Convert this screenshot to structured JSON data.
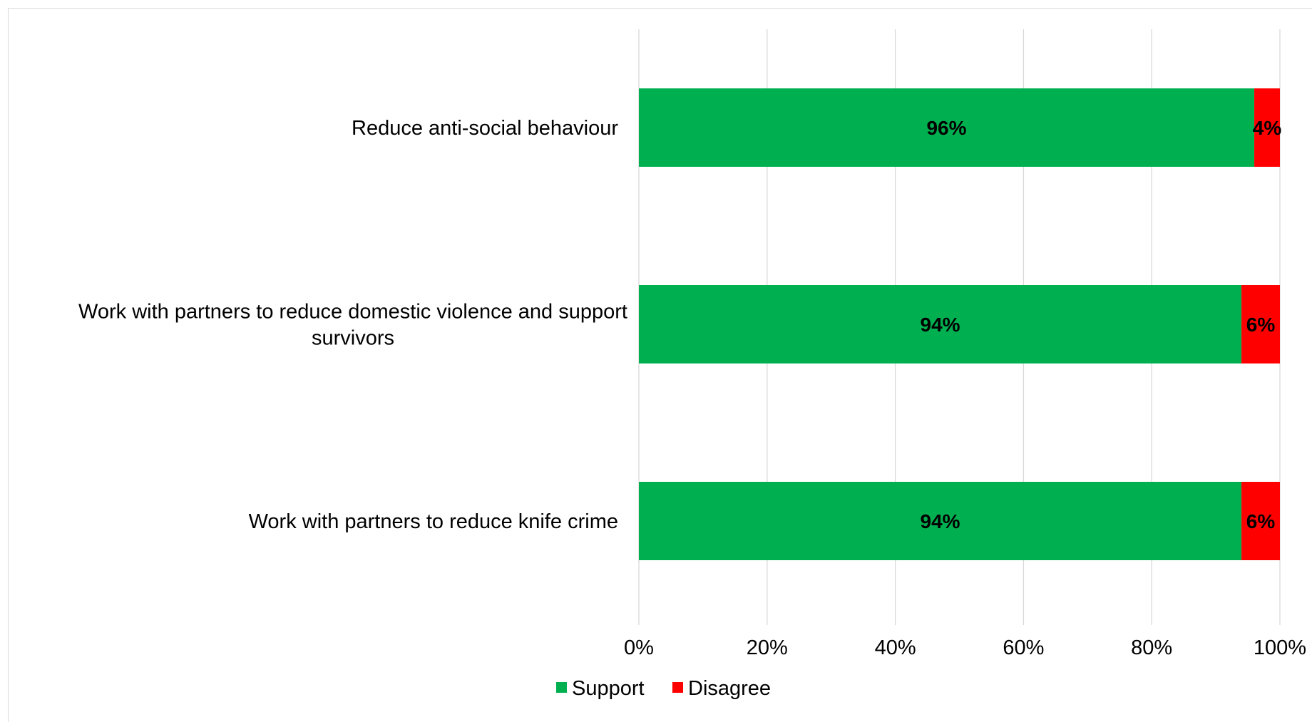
{
  "chart_data": {
    "type": "bar",
    "orientation": "horizontal",
    "stacked": true,
    "percent": true,
    "categories": [
      "Reduce anti-social behaviour",
      "Work with partners to reduce domestic violence and support survivors",
      "Work with partners to reduce knife crime"
    ],
    "category_label_lines": [
      [
        "Reduce anti-social behaviour"
      ],
      [
        "Work with partners to reduce domestic violence and support",
        "survivors"
      ],
      [
        "Work with partners to reduce knife crime"
      ]
    ],
    "series": [
      {
        "name": "Support",
        "color": "#00b050",
        "values": [
          96,
          94,
          94
        ],
        "data_labels": [
          "96%",
          "94%",
          "94%"
        ]
      },
      {
        "name": "Disagree",
        "color": "#ff0000",
        "values": [
          4,
          6,
          6
        ],
        "data_labels": [
          "4%",
          "6%",
          "6%"
        ]
      }
    ],
    "x_ticks": [
      "0%",
      "20%",
      "40%",
      "60%",
      "80%",
      "100%"
    ],
    "xlim": [
      0,
      100
    ],
    "grid": "vertical",
    "legend": {
      "position": "bottom",
      "entries": [
        "Support",
        "Disagree"
      ]
    },
    "title": "",
    "xlabel": "",
    "ylabel": ""
  }
}
